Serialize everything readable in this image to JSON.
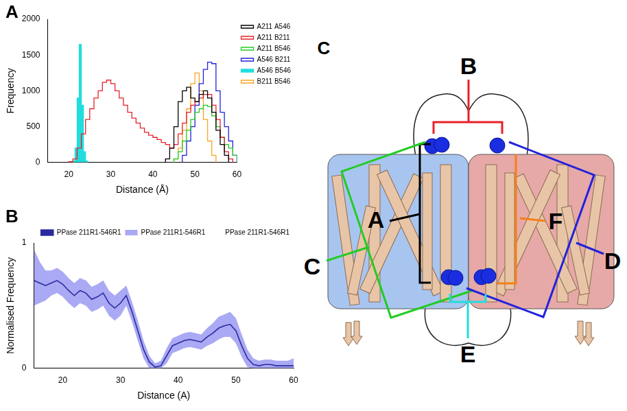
{
  "chart_data": [
    {
      "panel": "A",
      "type": "histogram",
      "x_label": "Distance (Å)",
      "y_label": "Frequency",
      "xlim": [
        15,
        60
      ],
      "xticks": [
        20,
        30,
        40,
        50,
        60
      ],
      "ylim": [
        0,
        2000
      ],
      "yticks": [
        0,
        500,
        1000,
        1500,
        2000
      ],
      "grid": false,
      "legend": "right",
      "series": [
        {
          "name": "A211 A546",
          "color": "#000000",
          "bins": [
            43,
            44,
            45,
            46,
            47,
            48,
            49,
            50,
            51,
            52,
            53,
            54,
            55,
            56,
            57,
            58
          ],
          "counts": [
            50,
            200,
            500,
            850,
            1000,
            1050,
            900,
            850,
            950,
            1000,
            900,
            700,
            450,
            250,
            100
          ]
        },
        {
          "name": "A211 B211",
          "color": "#e8202a",
          "bins": [
            20,
            21,
            22,
            23,
            24,
            25,
            26,
            27,
            28,
            29,
            30,
            31,
            32,
            33,
            34,
            35,
            36,
            37,
            38,
            39,
            40,
            41,
            42,
            43,
            44,
            45,
            46,
            47,
            48,
            49,
            50,
            51,
            52,
            53,
            54,
            55,
            56,
            57,
            58,
            59
          ],
          "counts": [
            10,
            50,
            200,
            400,
            600,
            750,
            900,
            1000,
            1120,
            1150,
            1100,
            1000,
            900,
            800,
            700,
            620,
            550,
            480,
            420,
            380,
            350,
            320,
            280,
            250,
            200,
            250,
            400,
            550,
            700,
            800,
            850,
            900,
            950,
            950,
            800,
            600,
            350,
            150,
            50
          ]
        },
        {
          "name": "A211 B546",
          "color": "#22cc22",
          "bins": [
            45,
            46,
            47,
            48,
            49,
            50,
            51,
            52,
            53,
            54,
            55,
            56,
            57,
            58,
            59,
            60
          ],
          "counts": [
            50,
            150,
            300,
            450,
            600,
            700,
            750,
            800,
            780,
            650,
            500,
            350,
            250,
            200,
            100
          ]
        },
        {
          "name": "A546 B211",
          "color": "#2222dd",
          "bins": [
            47,
            48,
            49,
            50,
            51,
            52,
            53,
            54,
            55,
            56,
            57,
            58,
            59,
            60
          ],
          "counts": [
            100,
            300,
            500,
            800,
            1100,
            1300,
            1400,
            1380,
            1000,
            700,
            500,
            300,
            100
          ]
        },
        {
          "name": "A546 B546",
          "color": "#22dddd",
          "type": "area",
          "bins": [
            21,
            21.5,
            22,
            22.5,
            23,
            23.5,
            24,
            24.5
          ],
          "counts": [
            20,
            200,
            900,
            1650,
            800,
            150,
            20
          ]
        },
        {
          "name": "B211 B546",
          "color": "#f5a623",
          "bins": [
            45,
            46,
            47,
            48,
            49,
            50,
            51,
            52,
            53,
            54,
            55
          ],
          "counts": [
            50,
            200,
            450,
            750,
            1100,
            1250,
            1000,
            600,
            300,
            100
          ]
        }
      ]
    },
    {
      "panel": "B",
      "type": "line",
      "x_label": "Distance (A)",
      "y_label": "Normalised Frequency",
      "x": [
        15,
        16,
        17,
        18,
        19,
        20,
        21,
        22,
        23,
        24,
        25,
        26,
        27,
        28,
        29,
        30,
        31,
        32,
        33,
        34,
        35,
        36,
        37,
        38,
        39,
        40,
        41,
        42,
        43,
        44,
        45,
        46,
        47,
        48,
        49,
        50,
        51,
        52,
        53,
        54,
        55,
        56,
        57,
        58,
        59,
        60
      ],
      "xlim": [
        15,
        60
      ],
      "xticks": [
        20,
        30,
        40,
        50,
        60
      ],
      "ylim": [
        0,
        1
      ],
      "yticks": [
        0,
        1
      ],
      "grid": false,
      "legend": "top",
      "series": [
        {
          "name": "PPase 211R1-546R1",
          "color": "#2b2ba0",
          "values": [
            0.7,
            0.68,
            0.66,
            0.68,
            0.7,
            0.67,
            0.62,
            0.58,
            0.62,
            0.6,
            0.55,
            0.57,
            0.6,
            0.52,
            0.48,
            0.52,
            0.58,
            0.45,
            0.3,
            0.15,
            0.05,
            0.01,
            0.02,
            0.1,
            0.18,
            0.2,
            0.22,
            0.23,
            0.22,
            0.21,
            0.25,
            0.28,
            0.32,
            0.34,
            0.35,
            0.3,
            0.18,
            0.08,
            0.03,
            0.02,
            0.03,
            0.03,
            0.02,
            0.02,
            0.02,
            0.02
          ]
        },
        {
          "name": "PPase 211R1-546R1",
          "color": "#8c8cf0",
          "type": "area",
          "values": [
            0.95,
            0.85,
            0.78,
            0.78,
            0.8,
            0.77,
            0.72,
            0.68,
            0.72,
            0.7,
            0.65,
            0.67,
            0.7,
            0.62,
            0.58,
            0.62,
            0.66,
            0.53,
            0.38,
            0.22,
            0.1,
            0.04,
            0.06,
            0.16,
            0.24,
            0.26,
            0.28,
            0.29,
            0.28,
            0.27,
            0.32,
            0.36,
            0.41,
            0.43,
            0.45,
            0.4,
            0.27,
            0.15,
            0.08,
            0.06,
            0.07,
            0.07,
            0.06,
            0.06,
            0.06,
            0.08
          ]
        },
        {
          "name": "PPase 211R1-546R1",
          "line_style": "none",
          "values": [
            0.5,
            0.52,
            0.54,
            0.58,
            0.6,
            0.57,
            0.52,
            0.48,
            0.52,
            0.5,
            0.45,
            0.47,
            0.5,
            0.42,
            0.38,
            0.42,
            0.5,
            0.37,
            0.22,
            0.08,
            0,
            0,
            0,
            0.04,
            0.12,
            0.14,
            0.16,
            0.17,
            0.16,
            0.15,
            0.18,
            0.2,
            0.23,
            0.25,
            0.25,
            0.2,
            0.09,
            0.01,
            0,
            0,
            0,
            0,
            0,
            0,
            0,
            0
          ]
        }
      ]
    }
  ],
  "diagram": {
    "panel": "C",
    "labels": [
      {
        "text": "A",
        "color": "#000000"
      },
      {
        "text": "B",
        "color": "#e8202a"
      },
      {
        "text": "C",
        "color": "#22cc22"
      },
      {
        "text": "D",
        "color": "#2222dd"
      },
      {
        "text": "E",
        "color": "#22dddd"
      },
      {
        "text": "F",
        "color": "#f57f17"
      }
    ]
  }
}
